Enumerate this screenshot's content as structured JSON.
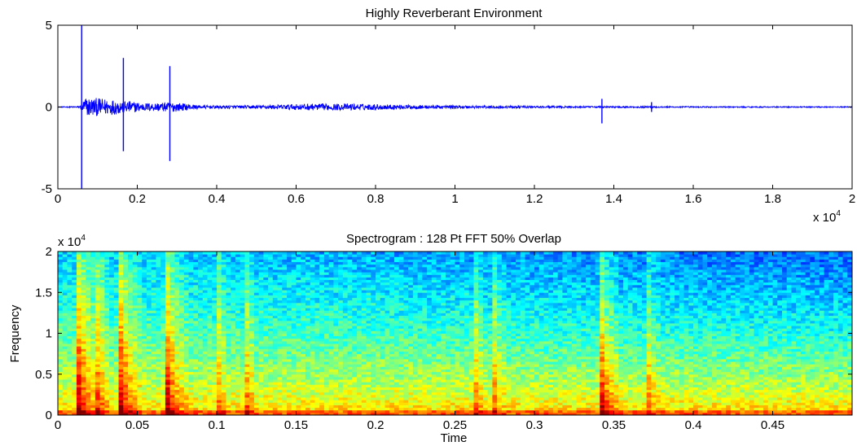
{
  "chart_data": [
    {
      "type": "line",
      "title": "Highly Reverberant Environment",
      "xlabel": "",
      "ylabel": "",
      "xlim": [
        0,
        20000
      ],
      "ylim": [
        -5,
        5
      ],
      "x_exponent_label": "x 10",
      "x_exponent_power": "4",
      "xticks": [
        0,
        2000,
        4000,
        6000,
        8000,
        10000,
        12000,
        14000,
        16000,
        18000,
        20000
      ],
      "xtick_labels": [
        "0",
        "0.2",
        "0.4",
        "0.6",
        "0.8",
        "1",
        "1.2",
        "1.4",
        "1.6",
        "1.8",
        "2"
      ],
      "yticks": [
        -5,
        0,
        5
      ],
      "ytick_labels": [
        "-5",
        "0",
        "5"
      ],
      "grid": false,
      "series_color": "#0000ff",
      "transients": [
        {
          "x": 600,
          "peak": 5.0,
          "trough": -5.0
        },
        {
          "x": 1650,
          "peak": 3.0,
          "trough": -2.7
        },
        {
          "x": 2820,
          "peak": 2.5,
          "trough": -3.3
        },
        {
          "x": 13700,
          "peak": 0.5,
          "trough": -1.0
        },
        {
          "x": 14950,
          "peak": 0.3,
          "trough": -0.3
        }
      ],
      "noise_envelope": [
        {
          "x": 0,
          "a": 0.02
        },
        {
          "x": 550,
          "a": 0.05
        },
        {
          "x": 700,
          "a": 0.6
        },
        {
          "x": 1500,
          "a": 0.45
        },
        {
          "x": 2200,
          "a": 0.25
        },
        {
          "x": 2900,
          "a": 0.3
        },
        {
          "x": 3600,
          "a": 0.1
        },
        {
          "x": 5000,
          "a": 0.1
        },
        {
          "x": 6300,
          "a": 0.2
        },
        {
          "x": 7500,
          "a": 0.2
        },
        {
          "x": 9000,
          "a": 0.12
        },
        {
          "x": 12000,
          "a": 0.06
        },
        {
          "x": 16000,
          "a": 0.04
        },
        {
          "x": 20000,
          "a": 0.03
        }
      ]
    },
    {
      "type": "heatmap",
      "title": "Spectrogram : 128 Pt FFT 50% Overlap",
      "xlabel": "Time",
      "ylabel": "Frequency",
      "xlim": [
        0,
        0.5
      ],
      "ylim": [
        0,
        20000
      ],
      "y_exponent_label": "x 10",
      "y_exponent_power": "4",
      "xticks": [
        0,
        0.05,
        0.1,
        0.15,
        0.2,
        0.25,
        0.3,
        0.35,
        0.4,
        0.45
      ],
      "xtick_labels": [
        "0",
        "0.05",
        "0.1",
        "0.15",
        "0.2",
        "0.25",
        "0.3",
        "0.35",
        "0.4",
        "0.45"
      ],
      "yticks": [
        0,
        5000,
        10000,
        15000,
        20000
      ],
      "ytick_labels": [
        "0",
        "0.5",
        "1",
        "1.5",
        "2"
      ],
      "colormap": "jet",
      "strong_onsets": [
        0.014,
        0.04,
        0.069,
        0.342
      ],
      "weak_onsets": [
        0.027,
        0.101,
        0.119,
        0.263,
        0.275,
        0.372
      ],
      "grid": false
    }
  ]
}
